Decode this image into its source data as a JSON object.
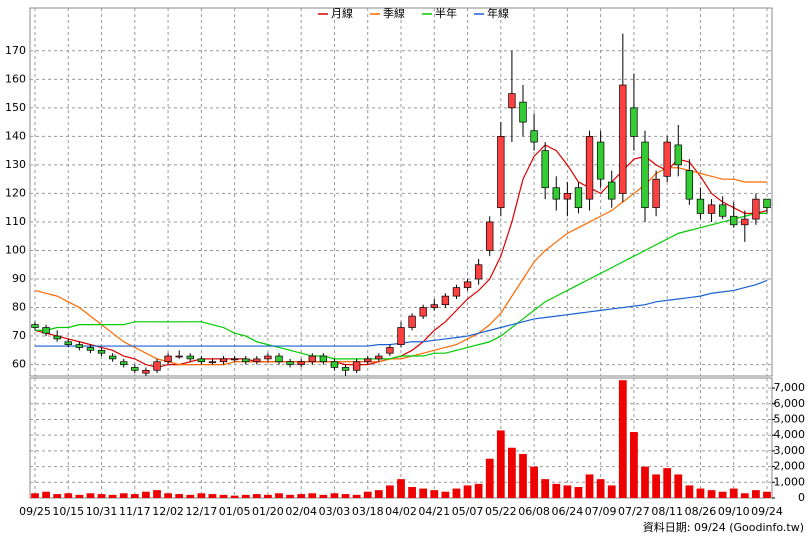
{
  "chart_data": {
    "type": "candlestick",
    "legend": "top",
    "grid": true,
    "up_color": "#ff4040",
    "down_color": "#33cc33",
    "source": "資料日期: 09/24 (Goodinfo.tw)",
    "categories": [
      "09/25",
      null,
      null,
      "10/15",
      null,
      null,
      "10/31",
      null,
      null,
      "11/17",
      null,
      null,
      "12/02",
      null,
      null,
      "12/17",
      null,
      null,
      "01/05",
      null,
      null,
      "01/20",
      null,
      null,
      "02/04",
      null,
      null,
      "03/03",
      null,
      null,
      "03/18",
      null,
      null,
      "04/02",
      null,
      null,
      "04/21",
      null,
      null,
      "05/07",
      null,
      null,
      "05/22",
      null,
      null,
      "06/08",
      null,
      null,
      "06/24",
      null,
      null,
      "07/09",
      null,
      null,
      "07/27",
      null,
      null,
      "08/11",
      null,
      null,
      "08/26",
      null,
      null,
      "09/10",
      null,
      null,
      "09/24"
    ],
    "open": [
      74,
      73,
      70,
      68,
      67,
      66,
      65,
      63,
      61,
      59,
      57,
      58,
      61,
      63,
      63,
      62,
      61,
      61,
      62,
      62,
      61,
      62,
      63,
      61,
      60,
      61,
      63,
      61,
      59,
      58,
      61,
      62,
      64,
      67,
      73,
      77,
      80,
      81,
      84,
      87,
      90,
      100,
      115,
      150,
      152,
      142,
      135,
      122,
      118,
      122,
      118,
      138,
      124,
      120,
      150,
      138,
      115,
      126,
      137,
      128,
      118,
      113,
      116,
      112,
      109,
      111,
      118
    ],
    "high": [
      75,
      74,
      72,
      69,
      68,
      67,
      66,
      64,
      62,
      60,
      59,
      62,
      64,
      65,
      64,
      63,
      62,
      63,
      63,
      63,
      63,
      64,
      64,
      62,
      62,
      64,
      64,
      62,
      60,
      62,
      63,
      64,
      67,
      75,
      78,
      81,
      83,
      85,
      88,
      90,
      97,
      112,
      145,
      170,
      158,
      148,
      138,
      126,
      124,
      124,
      142,
      142,
      128,
      176,
      162,
      142,
      128,
      140,
      144,
      132,
      122,
      118,
      119,
      117,
      114,
      120,
      118
    ],
    "low": [
      72,
      70,
      68,
      66,
      65,
      64,
      63,
      61,
      59,
      57,
      56,
      57,
      60,
      62,
      61,
      60,
      60,
      60,
      61,
      60,
      60,
      61,
      60,
      59,
      59,
      60,
      60,
      58,
      56,
      57,
      60,
      61,
      63,
      66,
      72,
      76,
      79,
      80,
      83,
      86,
      88,
      98,
      112,
      138,
      140,
      135,
      118,
      114,
      112,
      113,
      114,
      122,
      115,
      117,
      135,
      110,
      112,
      124,
      126,
      116,
      111,
      110,
      111,
      108,
      103,
      109,
      113
    ],
    "close": [
      73,
      71,
      69,
      67,
      66,
      65,
      64,
      62,
      60,
      58,
      58,
      61,
      63,
      63,
      62,
      61,
      61,
      62,
      62,
      61,
      62,
      63,
      61,
      60,
      61,
      63,
      61,
      59,
      58,
      61,
      62,
      63,
      66,
      73,
      77,
      80,
      81,
      84,
      87,
      89,
      95,
      110,
      140,
      155,
      145,
      138,
      122,
      118,
      120,
      115,
      140,
      125,
      118,
      158,
      140,
      115,
      125,
      138,
      130,
      118,
      113,
      116,
      112,
      109,
      111,
      118,
      115
    ],
    "ylim": [
      56,
      185
    ],
    "yticks": [
      60,
      70,
      80,
      90,
      100,
      110,
      120,
      130,
      140,
      150,
      160,
      170
    ],
    "series": [
      {
        "name": "月線",
        "color": "#dd0000",
        "values": [
          72,
          71,
          70,
          69,
          68,
          67,
          66,
          65,
          63,
          62,
          60,
          59,
          60,
          60,
          61,
          62,
          62,
          62,
          62,
          62,
          61,
          61,
          61,
          61,
          61,
          61,
          61,
          61,
          60,
          60,
          60,
          61,
          62,
          63,
          65,
          68,
          72,
          75,
          79,
          83,
          86,
          90,
          98,
          110,
          125,
          133,
          137,
          135,
          130,
          124,
          122,
          120,
          124,
          128,
          132,
          133,
          130,
          128,
          132,
          131,
          126,
          120,
          117,
          115,
          113,
          113,
          114
        ]
      },
      {
        "name": "季線",
        "color": "#ff6a00",
        "values": [
          86,
          85,
          84,
          82,
          80,
          77,
          74,
          71,
          68,
          66,
          64,
          62,
          61,
          60,
          60,
          60,
          60,
          60,
          61,
          61,
          61,
          61,
          61,
          61,
          61,
          61,
          61,
          61,
          61,
          61,
          61,
          61,
          62,
          62,
          63,
          64,
          65,
          66,
          67,
          69,
          71,
          74,
          78,
          84,
          90,
          96,
          100,
          103,
          106,
          108,
          110,
          112,
          114,
          117,
          120,
          123,
          127,
          129,
          129,
          128,
          127,
          126,
          125,
          125,
          124,
          124,
          124
        ]
      },
      {
        "name": "半年",
        "color": "#00cc00",
        "values": [
          72,
          72,
          73,
          73,
          74,
          74,
          74,
          74,
          74,
          75,
          75,
          75,
          75,
          75,
          75,
          75,
          74,
          73,
          71,
          70,
          68,
          67,
          66,
          65,
          64,
          63,
          63,
          62,
          62,
          62,
          62,
          62,
          62,
          63,
          63,
          63,
          64,
          64,
          65,
          66,
          67,
          68,
          70,
          73,
          76,
          79,
          82,
          84,
          86,
          88,
          90,
          92,
          94,
          96,
          98,
          100,
          102,
          104,
          106,
          107,
          108,
          109,
          110,
          111,
          112,
          113,
          113
        ]
      },
      {
        "name": "年線",
        "color": "#1a5fd6",
        "values": [
          66.5,
          66.5,
          66.5,
          66.5,
          66.5,
          66.5,
          66.5,
          66.5,
          66.5,
          66.5,
          66.5,
          66.5,
          66.5,
          66.5,
          66.5,
          66.5,
          66.5,
          66.5,
          66.5,
          66.5,
          66.5,
          66.5,
          66.5,
          66.5,
          66.5,
          66.5,
          66.5,
          66.5,
          66.5,
          66.5,
          66.5,
          67,
          67,
          67.5,
          68,
          68,
          68.5,
          69,
          69.5,
          70,
          71,
          72,
          73,
          74,
          75,
          76,
          76.5,
          77,
          77.5,
          78,
          78.5,
          79,
          79.5,
          80,
          80.5,
          81,
          82,
          82.5,
          83,
          83.5,
          84,
          85,
          85.5,
          86,
          87,
          88,
          89.5
        ]
      }
    ],
    "volume": {
      "color": "#ee0000",
      "values": [
        300,
        400,
        250,
        300,
        200,
        300,
        250,
        200,
        300,
        250,
        400,
        500,
        300,
        250,
        200,
        300,
        250,
        200,
        150,
        200,
        250,
        200,
        300,
        200,
        250,
        300,
        200,
        300,
        250,
        200,
        400,
        500,
        800,
        1200,
        700,
        600,
        500,
        400,
        600,
        800,
        900,
        2500,
        4300,
        3200,
        2800,
        2000,
        1200,
        900,
        800,
        700,
        1500,
        1200,
        800,
        7500,
        4200,
        2000,
        1500,
        1900,
        1500,
        800,
        600,
        500,
        400,
        600,
        300,
        500,
        400
      ],
      "ylim": [
        0,
        7640
      ],
      "yticks": [
        0,
        {
          "value": 1000,
          "label": "1,000"
        },
        {
          "value": 2000,
          "label": "2,000"
        },
        {
          "value": 3000,
          "label": "3,000"
        },
        {
          "value": 4000,
          "label": "4,000"
        },
        {
          "value": 5000,
          "label": "5,000"
        },
        {
          "value": 6000,
          "label": "6,000"
        },
        {
          "value": 7000,
          "label": "7,000"
        }
      ]
    }
  }
}
